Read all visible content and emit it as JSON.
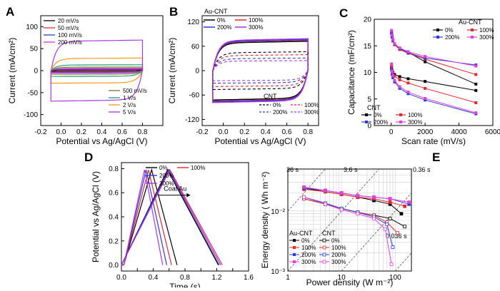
{
  "figure": {
    "panels": [
      "A",
      "B",
      "C",
      "D",
      "E"
    ]
  },
  "chart_data": [
    {
      "id": "A",
      "type": "line",
      "title": "",
      "xlabel": "Potential vs Ag/AgCl (V)",
      "ylabel": "Current (mA/cm²)",
      "xlim": [
        -0.2,
        1.0
      ],
      "ylim": [
        -125,
        125
      ],
      "xticks": [
        -0.2,
        0.0,
        0.2,
        0.4,
        0.6,
        0.8
      ],
      "yticks": [
        -100,
        -50,
        0,
        50,
        100
      ],
      "legend_top": [
        "20 mV/s",
        "50 mV/s",
        "100 mV/s",
        "200 mV/s"
      ],
      "legend_bottom": [
        "500 mV/s",
        "1 V/s",
        "2 V/s",
        "5 V/s"
      ],
      "series": [
        {
          "name": "20 mV/s",
          "color": "#000000",
          "half_height": 1.5
        },
        {
          "name": "50 mV/s",
          "color": "#e8262b",
          "half_height": 2.5
        },
        {
          "name": "100 mV/s",
          "color": "#2a3bd8",
          "half_height": 3.5
        },
        {
          "name": "200 mV/s",
          "color": "#d630d6",
          "half_height": 5
        },
        {
          "name": "500 mV/s",
          "color": "#6f7a2a",
          "half_height": 8
        },
        {
          "name": "1 V/s",
          "color": "#1f9e74",
          "half_height": 13
        },
        {
          "name": "2 V/s",
          "color": "#f39c1c",
          "half_height": 28
        },
        {
          "name": "5 V/s",
          "color": "#a838e0",
          "half_height": 68
        }
      ]
    },
    {
      "id": "B",
      "type": "line",
      "title": "",
      "xlabel": "Potential vs Ag/AgCl (V)",
      "ylabel": "Current (mA/cm²)",
      "xlim": [
        -0.2,
        0.9
      ],
      "ylim": [
        -135,
        135
      ],
      "xticks": [
        -0.2,
        0.0,
        0.2,
        0.4,
        0.6,
        0.8
      ],
      "yticks": [
        -120,
        -60,
        0,
        60,
        120
      ],
      "legend_au_title": "Au-CNT",
      "legend_cnt_title": "CNT",
      "legend_au": [
        "0%",
        "100%",
        "200%",
        "300%"
      ],
      "legend_cnt": [
        "0%",
        "100%",
        "200%",
        "300%"
      ],
      "series": [
        {
          "name": "Au-CNT 0%",
          "color": "#000000",
          "style": "solid",
          "half_height": 70
        },
        {
          "name": "Au-CNT 100%",
          "color": "#e8262b",
          "style": "solid",
          "half_height": 73
        },
        {
          "name": "Au-CNT 200%",
          "color": "#2a3bd8",
          "style": "solid",
          "half_height": 74
        },
        {
          "name": "Au-CNT 300%",
          "color": "#a838e0",
          "style": "solid",
          "half_height": 76
        },
        {
          "name": "CNT 0%",
          "color": "#000000",
          "style": "dashed",
          "half_height": 45
        },
        {
          "name": "CNT 100%",
          "color": "#e8262b",
          "style": "dashed",
          "half_height": 38
        },
        {
          "name": "CNT 200%",
          "color": "#2a3bd8",
          "style": "dashed",
          "half_height": 30
        },
        {
          "name": "CNT 300%",
          "color": "#a838e0",
          "style": "dashed",
          "half_height": 24
        }
      ]
    },
    {
      "id": "C",
      "type": "line",
      "title": "",
      "xlabel": "Scan rate (mV/s)",
      "ylabel": "Capacitance (mF/cm²)",
      "xlim": [
        -1000,
        6000
      ],
      "ylim": [
        0,
        20
      ],
      "xticks": [
        0,
        2000,
        4000,
        6000
      ],
      "yticks": [
        0,
        5,
        10,
        15,
        20
      ],
      "legend_au_title": "Au-CNT",
      "legend_cnt_title": "CNT",
      "legend_labels": [
        "0%",
        "100%",
        "200%",
        "300%"
      ],
      "x": [
        20,
        50,
        100,
        200,
        500,
        1000,
        2000,
        5000
      ],
      "series": [
        {
          "name": "Au-CNT 0%",
          "color": "#000000",
          "values": [
            17.5,
            16.8,
            16.0,
            15.3,
            14.4,
            13.8,
            12.0,
            7.8
          ]
        },
        {
          "name": "Au-CNT 100%",
          "color": "#e8262b",
          "values": [
            17.3,
            16.6,
            15.9,
            15.2,
            14.3,
            13.6,
            12.5,
            9.6
          ]
        },
        {
          "name": "Au-CNT 200%",
          "color": "#2a3bd8",
          "values": [
            17.4,
            16.7,
            16.0,
            15.3,
            14.5,
            13.7,
            12.7,
            11.4
          ]
        },
        {
          "name": "Au-CNT 300%",
          "color": "#e040e0",
          "values": [
            17.9,
            17.0,
            16.2,
            15.4,
            14.6,
            13.9,
            13.0,
            11.2
          ]
        },
        {
          "name": "CNT 0%",
          "color": "#000000",
          "values": [
            11.0,
            10.4,
            10.0,
            9.6,
            9.2,
            8.8,
            8.3,
            6.6
          ]
        },
        {
          "name": "CNT 100%",
          "color": "#e8262b",
          "values": [
            11.2,
            10.3,
            9.8,
            9.3,
            8.6,
            8.0,
            7.0,
            4.3
          ]
        },
        {
          "name": "CNT 200%",
          "color": "#2a3bd8",
          "values": [
            10.5,
            9.6,
            9.0,
            8.2,
            7.0,
            6.0,
            4.8,
            2.2
          ]
        },
        {
          "name": "CNT 300%",
          "color": "#e040e0",
          "values": [
            11.6,
            10.2,
            9.4,
            8.5,
            7.3,
            6.3,
            5.1,
            2.4
          ]
        }
      ]
    },
    {
      "id": "D",
      "type": "line",
      "title": "",
      "xlabel": "Time (s)",
      "ylabel": "Potential vs Ag/AgCl (V)",
      "xlim": [
        0,
        1.6
      ],
      "ylim": [
        -0.05,
        0.85
      ],
      "xticks": [
        0.0,
        0.2,
        0.4,
        0.6,
        0.8,
        1.0,
        1.2,
        1.4,
        1.6
      ],
      "yticks": [
        0.0,
        0.2,
        0.4,
        0.6,
        0.8
      ],
      "annotation": "Coat Au",
      "legend": [
        "0%",
        "100%",
        "200%",
        "300%"
      ],
      "series": [
        {
          "name": "CNT 0%",
          "color": "#000000",
          "x": [
            0.03,
            0.38,
            0.7
          ],
          "y": [
            0.0,
            0.79,
            0.0
          ]
        },
        {
          "name": "CNT 100%",
          "color": "#e8262b",
          "x": [
            0.03,
            0.34,
            0.63
          ],
          "y": [
            0.0,
            0.79,
            0.0
          ]
        },
        {
          "name": "CNT 200%",
          "color": "#2a3bd8",
          "x": [
            0.03,
            0.31,
            0.57
          ],
          "y": [
            0.0,
            0.79,
            0.0
          ]
        },
        {
          "name": "CNT 300%",
          "color": "#a838e0",
          "x": [
            0.03,
            0.29,
            0.52
          ],
          "y": [
            0.0,
            0.79,
            0.0
          ]
        },
        {
          "name": "Au-CNT 0%",
          "color": "#000000",
          "x": [
            0.0,
            0.58,
            1.22
          ],
          "y": [
            0.0,
            0.79,
            0.0
          ]
        },
        {
          "name": "Au-CNT 100%",
          "color": "#e8262b",
          "x": [
            0.0,
            0.6,
            1.25
          ],
          "y": [
            0.0,
            0.79,
            0.0
          ]
        },
        {
          "name": "Au-CNT 200%",
          "color": "#2a3bd8",
          "x": [
            0.0,
            0.59,
            1.23
          ],
          "y": [
            0.0,
            0.79,
            0.0
          ]
        },
        {
          "name": "Au-CNT 300%",
          "color": "#a838e0",
          "x": [
            0.0,
            0.61,
            1.27
          ],
          "y": [
            0.0,
            0.79,
            0.0
          ]
        }
      ]
    },
    {
      "id": "E",
      "type": "line",
      "scale": "log-log",
      "title": "",
      "xlabel": "Power density (W m⁻²)",
      "ylabel": "Energy density ( Wh m⁻²)",
      "xlim": [
        1,
        200
      ],
      "ylim": [
        0.001,
        0.05
      ],
      "xtick_labels": [
        "1",
        "10",
        "100"
      ],
      "ytick_labels": [
        "10⁻³",
        "10⁻²"
      ],
      "grid": true,
      "time_labels": [
        "36 s",
        "3.6 s",
        "0.36 s",
        "0.036 s"
      ],
      "legend_au_title": "Au-CNT",
      "legend_cnt_title": "CNT",
      "legend_labels": [
        "0%",
        "100%",
        "200%",
        "300%"
      ],
      "series": [
        {
          "name": "Au-CNT 0%",
          "color": "#000000",
          "x": [
            2,
            5,
            10,
            20,
            40,
            80,
            130
          ],
          "y": [
            0.024,
            0.021,
            0.019,
            0.017,
            0.015,
            0.013,
            0.009
          ]
        },
        {
          "name": "Au-CNT 100%",
          "color": "#e8262b",
          "x": [
            2,
            5,
            10,
            20,
            40,
            80,
            150
          ],
          "y": [
            0.023,
            0.021,
            0.019,
            0.017,
            0.016,
            0.014,
            0.012
          ]
        },
        {
          "name": "Au-CNT 200%",
          "color": "#2a3bd8",
          "x": [
            2,
            5,
            10,
            20,
            40,
            80,
            180
          ],
          "y": [
            0.024,
            0.022,
            0.02,
            0.018,
            0.017,
            0.016,
            0.013
          ]
        },
        {
          "name": "Au-CNT 300%",
          "color": "#e040e0",
          "x": [
            2,
            5,
            10,
            20,
            40,
            80,
            180
          ],
          "y": [
            0.025,
            0.022,
            0.02,
            0.018,
            0.017,
            0.016,
            0.014
          ]
        },
        {
          "name": "CNT 0%",
          "color": "#000000",
          "x": [
            2,
            5,
            10,
            20,
            40,
            80,
            150
          ],
          "y": [
            0.016,
            0.013,
            0.011,
            0.0095,
            0.0085,
            0.0075,
            0.0055
          ]
        },
        {
          "name": "CNT 100%",
          "color": "#e8262b",
          "x": [
            2,
            5,
            10,
            20,
            40,
            70,
            110
          ],
          "y": [
            0.016,
            0.013,
            0.011,
            0.0095,
            0.0085,
            0.0065,
            0.0043
          ]
        },
        {
          "name": "CNT 200%",
          "color": "#2a3bd8",
          "x": [
            2,
            5,
            10,
            20,
            40,
            70,
            90
          ],
          "y": [
            0.017,
            0.0135,
            0.011,
            0.0095,
            0.008,
            0.006,
            0.0025
          ]
        },
        {
          "name": "CNT 300%",
          "color": "#e040e0",
          "x": [
            2,
            5,
            10,
            20,
            40,
            65,
            85
          ],
          "y": [
            0.017,
            0.013,
            0.0105,
            0.009,
            0.0075,
            0.005,
            0.0013
          ]
        }
      ]
    }
  ]
}
